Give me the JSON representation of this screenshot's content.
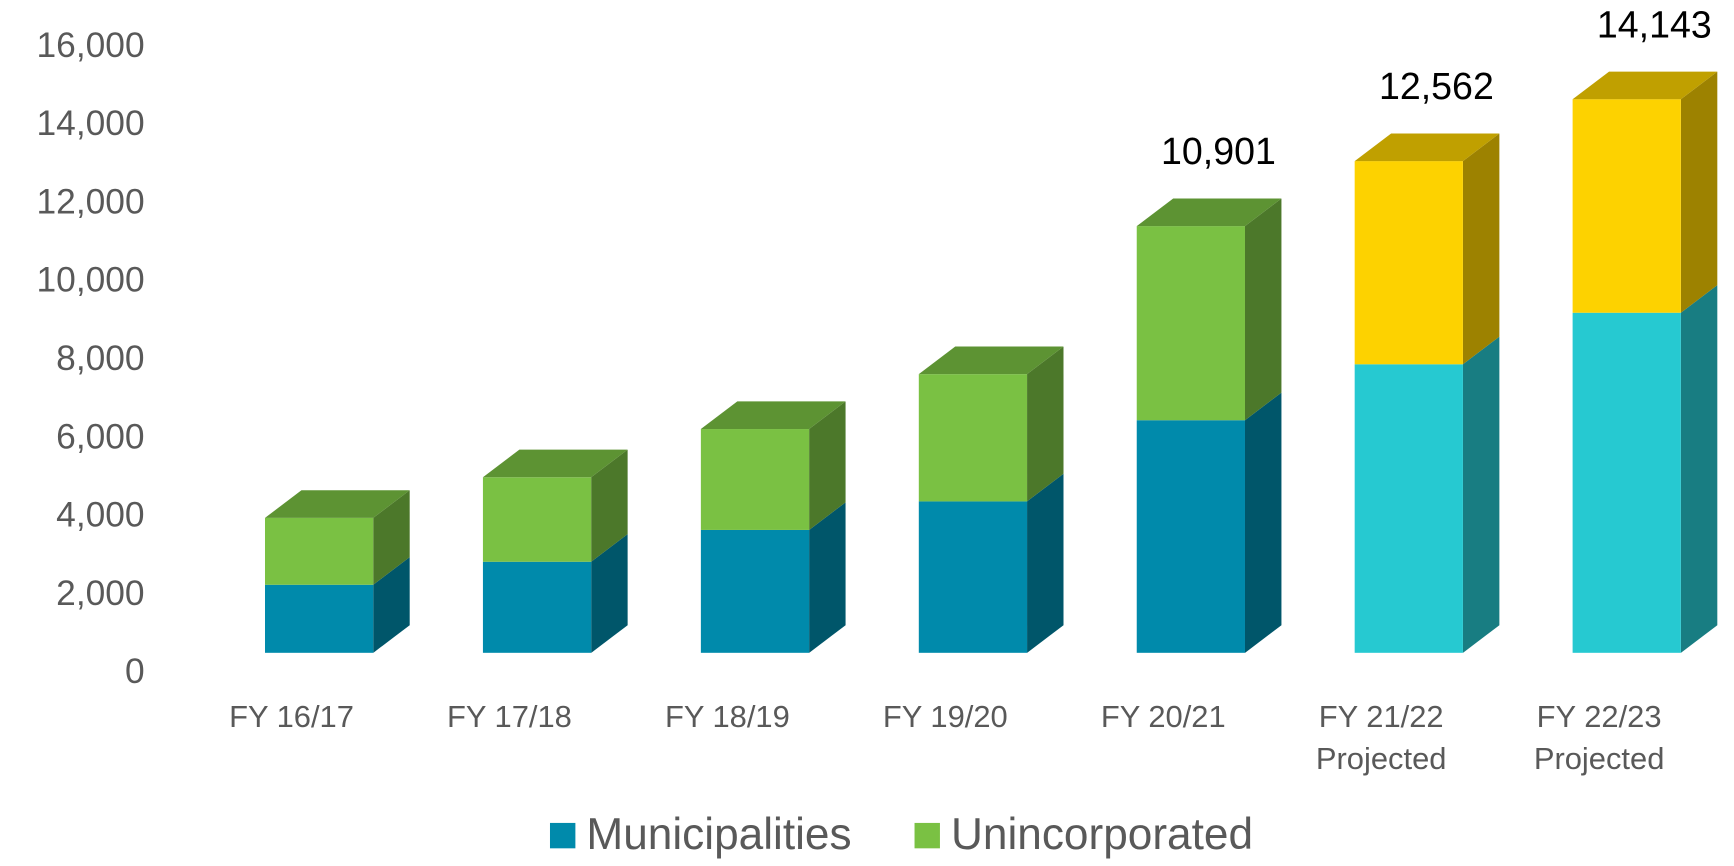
{
  "chart_data": {
    "type": "bar3d_stacked",
    "categories": [
      "FY 16/17",
      "FY 17/18",
      "FY 18/19",
      "FY 19/20",
      "FY 20/21",
      "FY 21/22\nProjected",
      "FY 22/23\nProjected"
    ],
    "series": [
      {
        "name": "Municipalities",
        "color": "#008aab",
        "colors": [
          "#008aab",
          "#008aab",
          "#008aab",
          "#008aab",
          "#008aab",
          "#26c9d1",
          "#26c9d1"
        ],
        "values": [
          1738,
          2326,
          3139,
          3868,
          5942,
          7371,
          8688
        ]
      },
      {
        "name": "Unincorporated",
        "color": "#7ac143",
        "colors": [
          "#7ac143",
          "#7ac143",
          "#7ac143",
          "#7ac143",
          "#7ac143",
          "#fdd200",
          "#fdd200"
        ],
        "values": [
          1709,
          2158,
          2578,
          3251,
          4959,
          5191,
          5455
        ]
      }
    ],
    "total_labels": [
      null,
      null,
      null,
      null,
      "10,901",
      "12,562",
      "14,143"
    ],
    "ylim": [
      0,
      16000
    ],
    "yticks": [
      0,
      {
        "value": 2000,
        "label": "2,000"
      },
      {
        "value": 4000,
        "label": "4,000"
      },
      {
        "value": 6000,
        "label": "6,000"
      },
      {
        "value": 8000,
        "label": "8,000"
      },
      {
        "value": 10000,
        "label": "10,000"
      },
      {
        "value": 12000,
        "label": "12,000"
      },
      {
        "value": 14000,
        "label": "14,000"
      },
      {
        "value": 16000,
        "label": "16,000"
      }
    ],
    "grid": false,
    "legend": "bottom"
  }
}
